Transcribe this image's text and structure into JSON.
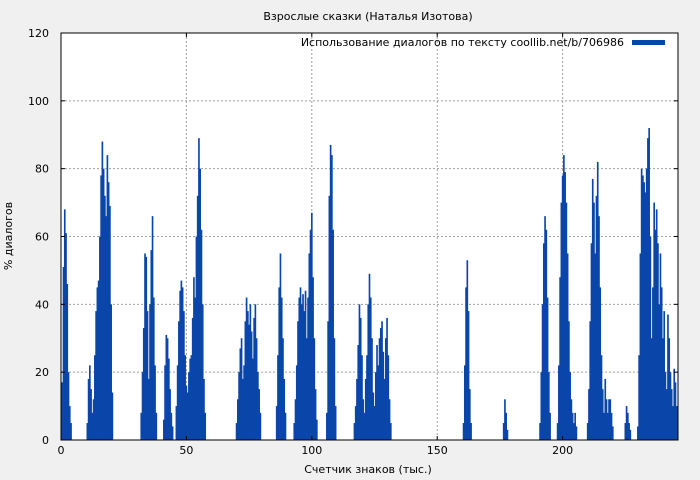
{
  "chart_data": {
    "type": "bar",
    "title": "Взрослые сказки (Наталья Изотова)",
    "xlabel": "Счетчик знаков (тыс.)",
    "ylabel": "% диалогов",
    "xlim": [
      0,
      246
    ],
    "ylim": [
      0,
      120
    ],
    "x_ticks": [
      0,
      50,
      100,
      150,
      200
    ],
    "y_ticks": [
      0,
      20,
      40,
      60,
      80,
      100,
      120
    ],
    "grid": true,
    "legend_position": "top-right",
    "series": [
      {
        "name": "Использование диалогов по тексту coollib.net/b/706986",
        "color": "#0a46aa",
        "points": [
          [
            0.5,
            17
          ],
          [
            1.0,
            51
          ],
          [
            1.5,
            68
          ],
          [
            2.0,
            61
          ],
          [
            2.5,
            46
          ],
          [
            3.0,
            20
          ],
          [
            3.5,
            10
          ],
          [
            4.0,
            5
          ],
          [
            10.5,
            5
          ],
          [
            11.0,
            18
          ],
          [
            11.5,
            22
          ],
          [
            12.0,
            15
          ],
          [
            12.5,
            8
          ],
          [
            13.0,
            12
          ],
          [
            13.5,
            25
          ],
          [
            14.0,
            38
          ],
          [
            14.5,
            45
          ],
          [
            15.0,
            47
          ],
          [
            15.5,
            60
          ],
          [
            16.0,
            78
          ],
          [
            16.5,
            88
          ],
          [
            17.0,
            80
          ],
          [
            17.5,
            72
          ],
          [
            18.0,
            66
          ],
          [
            18.5,
            84
          ],
          [
            19.0,
            76
          ],
          [
            19.5,
            69
          ],
          [
            20.0,
            40
          ],
          [
            20.5,
            14
          ],
          [
            32.0,
            8
          ],
          [
            32.5,
            20
          ],
          [
            33.0,
            33
          ],
          [
            33.5,
            55
          ],
          [
            34.0,
            54
          ],
          [
            34.5,
            38
          ],
          [
            35.0,
            18
          ],
          [
            35.5,
            40
          ],
          [
            36.0,
            56
          ],
          [
            36.5,
            66
          ],
          [
            37.0,
            42
          ],
          [
            37.5,
            22
          ],
          [
            38.0,
            8
          ],
          [
            41.0,
            6
          ],
          [
            41.5,
            22
          ],
          [
            42.0,
            31
          ],
          [
            42.5,
            30
          ],
          [
            43.0,
            24
          ],
          [
            43.5,
            15
          ],
          [
            44.0,
            8
          ],
          [
            44.5,
            4
          ],
          [
            46.0,
            10
          ],
          [
            46.5,
            22
          ],
          [
            47.0,
            35
          ],
          [
            47.5,
            44
          ],
          [
            48.0,
            47
          ],
          [
            48.5,
            45
          ],
          [
            49.0,
            38
          ],
          [
            49.5,
            25
          ],
          [
            50.0,
            16
          ],
          [
            50.5,
            14
          ],
          [
            51.0,
            20
          ],
          [
            51.5,
            24
          ],
          [
            52.0,
            25
          ],
          [
            52.5,
            36
          ],
          [
            53.0,
            48
          ],
          [
            53.5,
            42
          ],
          [
            54.0,
            60
          ],
          [
            54.5,
            72
          ],
          [
            55.0,
            89
          ],
          [
            55.5,
            80
          ],
          [
            56.0,
            62
          ],
          [
            56.5,
            40
          ],
          [
            57.0,
            18
          ],
          [
            57.5,
            8
          ],
          [
            70.0,
            5
          ],
          [
            70.5,
            12
          ],
          [
            71.0,
            20
          ],
          [
            71.5,
            27
          ],
          [
            72.0,
            30
          ],
          [
            72.5,
            18
          ],
          [
            73.0,
            22
          ],
          [
            73.5,
            35
          ],
          [
            74.0,
            42
          ],
          [
            74.5,
            38
          ],
          [
            75.0,
            34
          ],
          [
            75.5,
            40
          ],
          [
            76.0,
            32
          ],
          [
            76.5,
            24
          ],
          [
            77.0,
            36
          ],
          [
            77.5,
            40
          ],
          [
            78.0,
            30
          ],
          [
            78.5,
            20
          ],
          [
            79.0,
            15
          ],
          [
            79.5,
            8
          ],
          [
            86.0,
            10
          ],
          [
            86.5,
            25
          ],
          [
            87.0,
            45
          ],
          [
            87.5,
            55
          ],
          [
            88.0,
            42
          ],
          [
            88.5,
            30
          ],
          [
            89.0,
            18
          ],
          [
            89.5,
            8
          ],
          [
            93.0,
            5
          ],
          [
            93.5,
            12
          ],
          [
            94.0,
            22
          ],
          [
            94.5,
            35
          ],
          [
            95.0,
            42
          ],
          [
            95.5,
            45
          ],
          [
            96.0,
            40
          ],
          [
            96.5,
            43
          ],
          [
            97.0,
            38
          ],
          [
            97.5,
            44
          ],
          [
            98.0,
            30
          ],
          [
            98.5,
            42
          ],
          [
            99.0,
            55
          ],
          [
            99.5,
            62
          ],
          [
            100.0,
            67
          ],
          [
            100.5,
            48
          ],
          [
            101.0,
            30
          ],
          [
            101.5,
            15
          ],
          [
            102.0,
            6
          ],
          [
            106.0,
            8
          ],
          [
            106.5,
            35
          ],
          [
            107.0,
            72
          ],
          [
            107.5,
            87
          ],
          [
            108.0,
            84
          ],
          [
            108.5,
            62
          ],
          [
            109.0,
            30
          ],
          [
            109.5,
            10
          ],
          [
            117.0,
            5
          ],
          [
            117.5,
            10
          ],
          [
            118.0,
            18
          ],
          [
            118.5,
            28
          ],
          [
            119.0,
            40
          ],
          [
            119.5,
            36
          ],
          [
            120.0,
            25
          ],
          [
            120.5,
            12
          ],
          [
            121.0,
            8
          ],
          [
            121.5,
            18
          ],
          [
            122.0,
            25
          ],
          [
            122.5,
            40
          ],
          [
            123.0,
            49
          ],
          [
            123.5,
            42
          ],
          [
            124.0,
            30
          ],
          [
            124.5,
            14
          ],
          [
            125.0,
            10
          ],
          [
            125.5,
            20
          ],
          [
            126.0,
            28
          ],
          [
            126.5,
            22
          ],
          [
            127.0,
            30
          ],
          [
            127.5,
            33
          ],
          [
            128.0,
            35
          ],
          [
            128.5,
            26
          ],
          [
            129.0,
            18
          ],
          [
            129.5,
            30
          ],
          [
            130.0,
            36
          ],
          [
            130.5,
            25
          ],
          [
            131.0,
            12
          ],
          [
            131.5,
            5
          ],
          [
            160.5,
            5
          ],
          [
            161.0,
            22
          ],
          [
            161.5,
            45
          ],
          [
            162.0,
            53
          ],
          [
            162.5,
            38
          ],
          [
            163.0,
            15
          ],
          [
            163.5,
            5
          ],
          [
            176.5,
            5
          ],
          [
            177.0,
            12
          ],
          [
            177.5,
            8
          ],
          [
            178.0,
            3
          ],
          [
            191.0,
            5
          ],
          [
            191.5,
            20
          ],
          [
            192.0,
            40
          ],
          [
            192.5,
            58
          ],
          [
            193.0,
            66
          ],
          [
            193.5,
            62
          ],
          [
            194.0,
            42
          ],
          [
            194.5,
            20
          ],
          [
            195.0,
            8
          ],
          [
            198.0,
            5
          ],
          [
            198.5,
            22
          ],
          [
            199.0,
            48
          ],
          [
            199.5,
            70
          ],
          [
            200.0,
            78
          ],
          [
            200.5,
            84
          ],
          [
            201.0,
            79
          ],
          [
            201.5,
            70
          ],
          [
            202.0,
            55
          ],
          [
            202.5,
            35
          ],
          [
            203.0,
            20
          ],
          [
            203.5,
            12
          ],
          [
            204.0,
            8
          ],
          [
            204.5,
            5
          ],
          [
            205.0,
            8
          ],
          [
            205.5,
            4
          ],
          [
            210.0,
            5
          ],
          [
            210.5,
            15
          ],
          [
            211.0,
            35
          ],
          [
            211.5,
            58
          ],
          [
            212.0,
            77
          ],
          [
            212.5,
            70
          ],
          [
            213.0,
            55
          ],
          [
            213.5,
            72
          ],
          [
            214.0,
            82
          ],
          [
            214.5,
            66
          ],
          [
            215.0,
            45
          ],
          [
            215.5,
            25
          ],
          [
            216.0,
            15
          ],
          [
            216.5,
            8
          ],
          [
            217.0,
            18
          ],
          [
            217.5,
            12
          ],
          [
            218.0,
            8
          ],
          [
            218.5,
            12
          ],
          [
            219.0,
            12
          ],
          [
            219.5,
            8
          ],
          [
            220.0,
            4
          ],
          [
            225.0,
            5
          ],
          [
            225.5,
            10
          ],
          [
            226.0,
            8
          ],
          [
            226.5,
            5
          ],
          [
            227.0,
            3
          ],
          [
            230.0,
            4
          ],
          [
            230.5,
            25
          ],
          [
            231.0,
            55
          ],
          [
            231.5,
            80
          ],
          [
            232.0,
            78
          ],
          [
            232.5,
            76
          ],
          [
            233.0,
            73
          ],
          [
            233.5,
            80
          ],
          [
            234.0,
            89
          ],
          [
            234.5,
            92
          ],
          [
            235.0,
            60
          ],
          [
            235.5,
            30
          ],
          [
            236.0,
            45
          ],
          [
            236.5,
            70
          ],
          [
            237.0,
            62
          ],
          [
            237.5,
            68
          ],
          [
            238.0,
            58
          ],
          [
            238.5,
            40
          ],
          [
            239.0,
            55
          ],
          [
            239.5,
            45
          ],
          [
            240.0,
            30
          ],
          [
            240.5,
            38
          ],
          [
            241.0,
            20
          ],
          [
            241.5,
            15
          ],
          [
            242.0,
            37
          ],
          [
            242.5,
            30
          ],
          [
            243.0,
            20
          ],
          [
            243.5,
            15
          ],
          [
            244.0,
            10
          ],
          [
            244.5,
            21
          ],
          [
            245.0,
            17
          ],
          [
            245.5,
            10
          ]
        ]
      }
    ]
  }
}
